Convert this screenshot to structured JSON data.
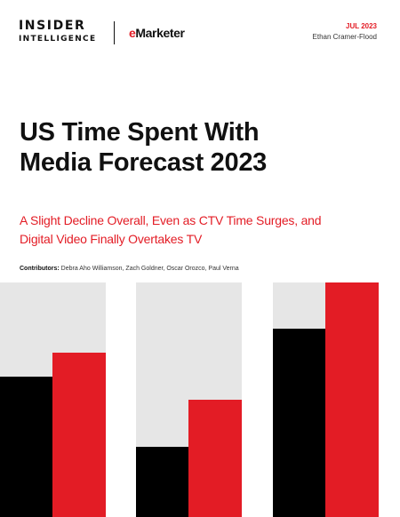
{
  "header": {
    "logo_insider_line1": "INSIDER",
    "logo_insider_line2": "INTELLIGENCE",
    "logo_emarketer_e": "e",
    "logo_emarketer_rest": "Marketer",
    "date": "JUL 2023",
    "author": "Ethan Cramer-Flood"
  },
  "title": {
    "line1": "US Time Spent With",
    "line2": "Media Forecast 2023"
  },
  "subtitle": {
    "line1": "A Slight Decline Overall, Even as CTV Time Surges, and",
    "line2": "Digital Video Finally Overtakes TV"
  },
  "contributors": {
    "label": "Contributors:",
    "names": "Debra Aho Williamson, Zach Goldner, Oscar Orozco, Paul Verna"
  },
  "colors": {
    "brand_red": "#e31c25",
    "black": "#000000",
    "light_gray": "#e6e6e6"
  }
}
